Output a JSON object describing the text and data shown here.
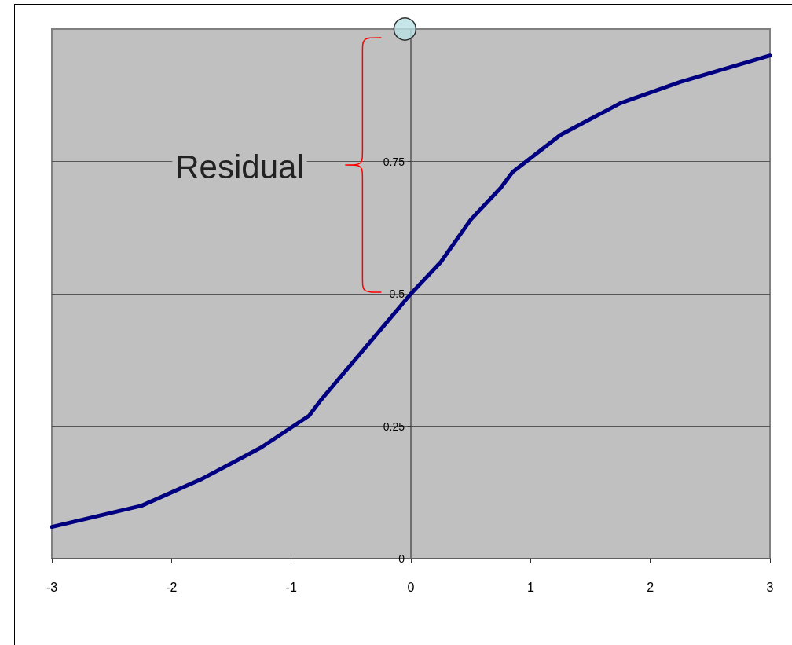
{
  "chart_data": {
    "type": "line",
    "xlim": [
      -3,
      3
    ],
    "xticks": [
      -3,
      -2,
      -1,
      0,
      1,
      2,
      3
    ],
    "ylim": [
      0,
      1
    ],
    "yticks": [
      0,
      0.25,
      0.5,
      0.75
    ],
    "grid": "y",
    "series": [
      {
        "color": "#000080",
        "marker": "none",
        "line_style": "solid",
        "x": [
          -3,
          -2.25,
          -1.75,
          -1.5,
          -1.25,
          -0.85,
          -0.75,
          0,
          0.25,
          0.5,
          0.75,
          0.85,
          1.25,
          1.5,
          1.75,
          2.25,
          3
        ],
        "values": [
          0.06,
          0.1,
          0.15,
          0.18,
          0.21,
          0.27,
          0.3,
          0.5,
          0.56,
          0.64,
          0.7,
          0.73,
          0.8,
          0.83,
          0.86,
          0.9,
          0.95
        ]
      },
      {
        "type": "scatter",
        "color": "#b9e0e3",
        "marker": "circle",
        "x": [
          -0.05
        ],
        "values": [
          1.0
        ]
      }
    ],
    "annotations": [
      "Residual"
    ]
  }
}
